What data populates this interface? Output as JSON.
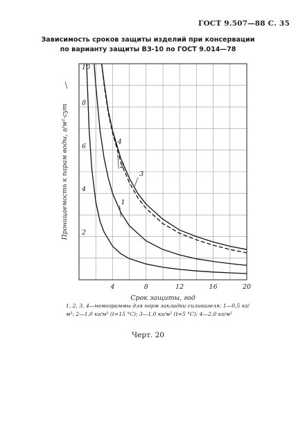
{
  "page_header": "ГОСТ 9.507—88 С. 35",
  "title_line1": "Зависимость сроков защиты изделий при консервации",
  "title_line2": "по варианту защиты ВЗ-10 по ГОСТ 9.014—78",
  "legend_text": "1, 2, 3, 4—номограммы для норм закладки силикагеля: 1—0,5 кг/м²; 2—1,0 кг/м² (t=15 °C); 3—1,0 кг/м² (t=5 °C); 4—2,0 кг/м²",
  "figure_caption": "Черт. 20",
  "chart_data": {
    "type": "line",
    "title": "",
    "xlabel": "Срок защиты, год",
    "ylabel": "Проницаемость к парам воды, г/м²·сут",
    "xlim": [
      0,
      20
    ],
    "ylim": [
      0,
      10
    ],
    "x_ticks": [
      4,
      8,
      12,
      16,
      20
    ],
    "x_tick_labels": [
      "4",
      "8",
      "12",
      "16",
      "20"
    ],
    "y_ticks": [
      2,
      4,
      6,
      8,
      10
    ],
    "y_tick_labels": [
      "2",
      "4",
      "6",
      "8",
      "10"
    ],
    "grid": true,
    "series": [
      {
        "name": "1",
        "style": "solid",
        "x": [
          0.9,
          1.2,
          1.5,
          2,
          2.5,
          3,
          4,
          5,
          6,
          8,
          10,
          12,
          14,
          16,
          18,
          20
        ],
        "y": [
          10,
          7.0,
          5.2,
          3.6,
          2.7,
          2.2,
          1.55,
          1.2,
          0.98,
          0.73,
          0.58,
          0.48,
          0.41,
          0.36,
          0.32,
          0.29
        ]
      },
      {
        "name": "2",
        "style": "dashed",
        "x": [
          2.7,
          3,
          3.5,
          4,
          5,
          6,
          7,
          8,
          10,
          12,
          14,
          16,
          18,
          20
        ],
        "y": [
          10,
          9.0,
          7.7,
          6.8,
          5.4,
          4.5,
          3.8,
          3.3,
          2.6,
          2.15,
          1.85,
          1.6,
          1.4,
          1.25
        ]
      },
      {
        "name": "3",
        "style": "solid",
        "x": [
          2.7,
          3,
          3.5,
          4,
          5,
          6,
          7,
          8,
          10,
          12,
          14,
          16,
          18,
          20
        ],
        "y": [
          10,
          9.1,
          7.8,
          6.9,
          5.6,
          4.7,
          4.0,
          3.5,
          2.8,
          2.3,
          2.0,
          1.75,
          1.55,
          1.4
        ]
      },
      {
        "name": "4",
        "style": "solid",
        "x": [
          1.8,
          2,
          2.5,
          3,
          3.5,
          4,
          5,
          6,
          8,
          10,
          12,
          14,
          16,
          18,
          20
        ],
        "y": [
          10,
          9.0,
          6.9,
          5.6,
          4.7,
          4.0,
          3.1,
          2.5,
          1.8,
          1.4,
          1.15,
          0.97,
          0.85,
          0.75,
          0.67
        ]
      }
    ]
  }
}
